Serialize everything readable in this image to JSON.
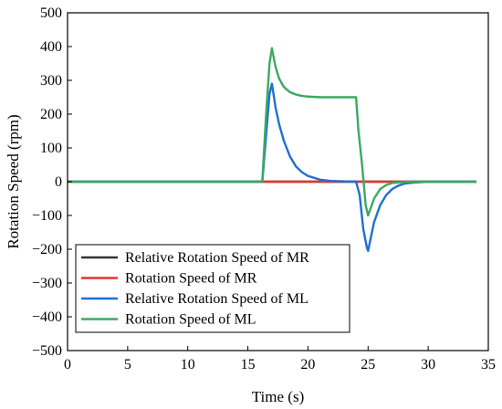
{
  "chart_data": {
    "type": "line",
    "title": "",
    "xlabel": "Time (s)",
    "ylabel": "Rotation Speed (rpm)",
    "xlim": [
      0,
      35
    ],
    "ylim": [
      -500,
      500
    ],
    "xticks": [
      0,
      5,
      10,
      15,
      20,
      25,
      30,
      35
    ],
    "yticks": [
      -500,
      -400,
      -300,
      -200,
      -100,
      0,
      100,
      200,
      300,
      400,
      500
    ],
    "grid": false,
    "legend_position": "bottom-left",
    "series": [
      {
        "name": "Relative Rotation Speed of MR",
        "color": "#333333",
        "points": [
          [
            0,
            0
          ],
          [
            16,
            0
          ],
          [
            17,
            0
          ],
          [
            24,
            0
          ],
          [
            25,
            0
          ],
          [
            34,
            0
          ]
        ]
      },
      {
        "name": "Rotation Speed of MR",
        "color": "#e8322f",
        "points": [
          [
            0,
            0
          ],
          [
            16,
            0
          ],
          [
            17,
            0
          ],
          [
            24,
            0
          ],
          [
            25,
            0
          ],
          [
            34,
            0
          ]
        ]
      },
      {
        "name": "Relative Rotation Speed of ML",
        "color": "#1f6fd6",
        "points": [
          [
            0,
            0
          ],
          [
            16,
            0
          ],
          [
            16.2,
            0
          ],
          [
            16.5,
            130
          ],
          [
            16.8,
            260
          ],
          [
            17.0,
            290
          ],
          [
            17.3,
            220
          ],
          [
            17.6,
            170
          ],
          [
            18.0,
            120
          ],
          [
            18.5,
            75
          ],
          [
            19.0,
            45
          ],
          [
            19.5,
            28
          ],
          [
            20.0,
            17
          ],
          [
            21.0,
            6
          ],
          [
            22.0,
            2
          ],
          [
            24.0,
            0
          ],
          [
            24.3,
            -40
          ],
          [
            24.6,
            -140
          ],
          [
            24.9,
            -195
          ],
          [
            25.0,
            -205
          ],
          [
            25.2,
            -170
          ],
          [
            25.5,
            -120
          ],
          [
            26.0,
            -70
          ],
          [
            26.5,
            -40
          ],
          [
            27.0,
            -22
          ],
          [
            27.5,
            -12
          ],
          [
            28.0,
            -6
          ],
          [
            29.0,
            -2
          ],
          [
            30.0,
            0
          ],
          [
            34.0,
            0
          ]
        ]
      },
      {
        "name": "Rotation Speed of ML",
        "color": "#3caa5f",
        "points": [
          [
            0,
            0
          ],
          [
            16,
            0
          ],
          [
            16.2,
            0
          ],
          [
            16.5,
            190
          ],
          [
            16.8,
            350
          ],
          [
            17.0,
            395
          ],
          [
            17.3,
            340
          ],
          [
            17.6,
            305
          ],
          [
            18.0,
            280
          ],
          [
            18.5,
            265
          ],
          [
            19.0,
            258
          ],
          [
            19.5,
            254
          ],
          [
            20.0,
            252
          ],
          [
            21.0,
            250
          ],
          [
            22.0,
            250
          ],
          [
            24.0,
            250
          ],
          [
            24.2,
            150
          ],
          [
            24.5,
            50
          ],
          [
            24.8,
            -70
          ],
          [
            25.0,
            -100
          ],
          [
            25.2,
            -80
          ],
          [
            25.5,
            -50
          ],
          [
            26.0,
            -22
          ],
          [
            26.5,
            -10
          ],
          [
            27.0,
            -4
          ],
          [
            28.0,
            -1
          ],
          [
            29.0,
            0
          ],
          [
            34.0,
            0
          ]
        ]
      }
    ]
  }
}
